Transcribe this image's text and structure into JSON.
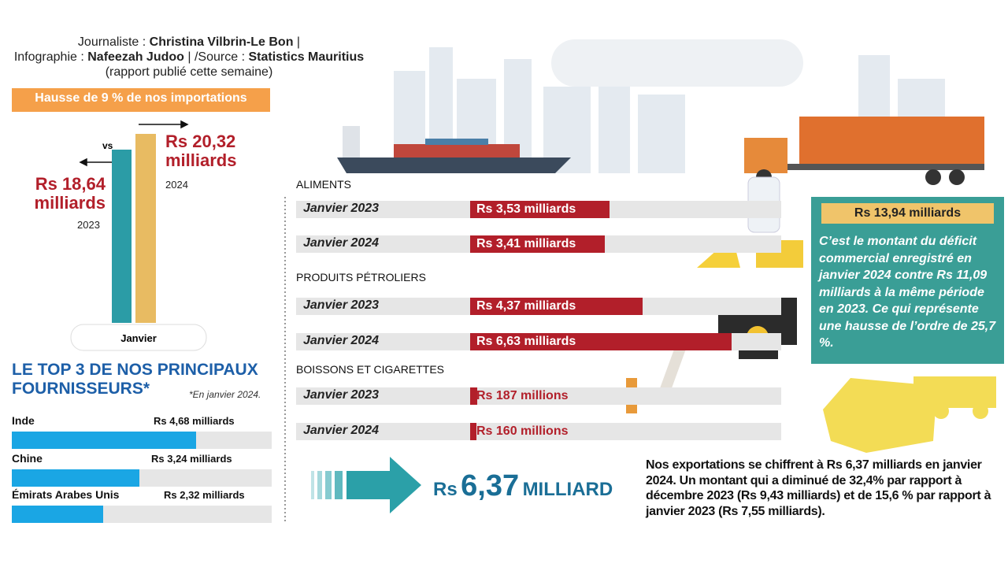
{
  "credits": {
    "journalist_label": "Journaliste :",
    "journalist": "Christina Vilbrin-Le Bon",
    "separator": "|",
    "graphics_label": "Infographie :",
    "graphics": "Nafeezah Judoo",
    "source_label": "/Source :",
    "source": "Statistics Mauritius",
    "source_note": "(rapport publié cette semaine)"
  },
  "chart_data": [
    {
      "type": "bar",
      "title": "Hausse de 9 % de nos importations",
      "categories": [
        "2023",
        "2024"
      ],
      "values": [
        18.64,
        20.32
      ],
      "value_labels": [
        "Rs 18,64 milliards",
        "Rs 20,32 milliards"
      ],
      "colors": [
        "#2b9ca6",
        "#e8bb62"
      ],
      "x_label": "Janvier",
      "annotation": "vs"
    },
    {
      "type": "hbar-groups",
      "color": "#b21f2a",
      "groups": [
        {
          "name": "ALIMENTS",
          "categories": [
            "Janvier 2023",
            "Janvier 2024"
          ],
          "values": [
            3.53,
            3.41
          ],
          "value_labels": [
            "Rs 3,53 milliards",
            "Rs 3,41 milliards"
          ]
        },
        {
          "name": "PRODUITS PÉTROLIERS",
          "categories": [
            "Janvier 2023",
            "Janvier 2024"
          ],
          "values": [
            4.37,
            6.63
          ],
          "value_labels": [
            "Rs 4,37 milliards",
            "Rs 6,63 milliards"
          ]
        },
        {
          "name": "BOISSONS ET CIGARETTES",
          "categories": [
            "Janvier 2023",
            "Janvier 2024"
          ],
          "values": [
            0.187,
            0.16
          ],
          "value_labels": [
            "Rs 187 millions",
            "Rs 160 millions"
          ]
        }
      ]
    },
    {
      "type": "hbar",
      "title": "LE TOP 3 DE NOS PRINCIPAUX FOURNISSEURS*",
      "note": "*En janvier 2024.",
      "categories": [
        "Inde",
        "Chine",
        "Émirats Arabes Unis"
      ],
      "values": [
        4.68,
        3.24,
        2.32
      ],
      "value_labels": [
        "Rs 4,68 milliards",
        "Rs 3,24 milliards",
        "Rs 2,32 milliards"
      ],
      "color": "#1aa6e4"
    }
  ],
  "deficit": {
    "amount": "Rs 13,94 milliards",
    "text": "C’est le montant du déficit commercial enregistré en janvier 2024 contre Rs 11,09 milliards à la même période en 2023. Ce qui représente une hausse de l’ordre de 25,7 %."
  },
  "exports": {
    "currency": "Rs",
    "amount": "6,37",
    "unit": "MILLIARD",
    "text": "Nos exportations se chiffrent à Rs 6,37 milliards en janvier 2024. Un montant qui a diminué de 32,4% par rapport à décembre 2023 (Rs 9,43 milliards) et de 15,6 % par rapport à janvier 2023 (Rs 7,55 milliards)."
  }
}
